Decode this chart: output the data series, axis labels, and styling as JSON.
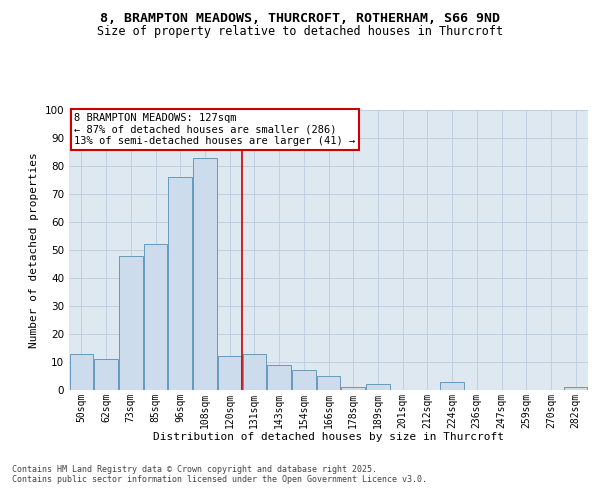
{
  "title_line1": "8, BRAMPTON MEADOWS, THURCROFT, ROTHERHAM, S66 9ND",
  "title_line2": "Size of property relative to detached houses in Thurcroft",
  "xlabel": "Distribution of detached houses by size in Thurcroft",
  "ylabel": "Number of detached properties",
  "categories": [
    "50sqm",
    "62sqm",
    "73sqm",
    "85sqm",
    "96sqm",
    "108sqm",
    "120sqm",
    "131sqm",
    "143sqm",
    "154sqm",
    "166sqm",
    "178sqm",
    "189sqm",
    "201sqm",
    "212sqm",
    "224sqm",
    "236sqm",
    "247sqm",
    "259sqm",
    "270sqm",
    "282sqm"
  ],
  "values": [
    13,
    11,
    48,
    52,
    76,
    83,
    12,
    13,
    9,
    7,
    5,
    1,
    2,
    0,
    0,
    3,
    0,
    0,
    0,
    0,
    1
  ],
  "bar_color": "#ccdcec",
  "bar_edge_color": "#6699bb",
  "vline_index": 6.5,
  "annotation_text": "8 BRAMPTON MEADOWS: 127sqm\n← 87% of detached houses are smaller (286)\n13% of semi-detached houses are larger (41) →",
  "annotation_box_facecolor": "#ffffff",
  "annotation_box_edgecolor": "#cc0000",
  "vline_color": "#cc0000",
  "grid_color": "#bbccdd",
  "bg_color": "#dde8f0",
  "footer_text": "Contains HM Land Registry data © Crown copyright and database right 2025.\nContains public sector information licensed under the Open Government Licence v3.0.",
  "ylim": [
    0,
    100
  ],
  "title_fontsize": 9.5,
  "subtitle_fontsize": 8.5,
  "tick_fontsize": 7,
  "ylabel_fontsize": 8,
  "xlabel_fontsize": 8,
  "annot_fontsize": 7.5
}
